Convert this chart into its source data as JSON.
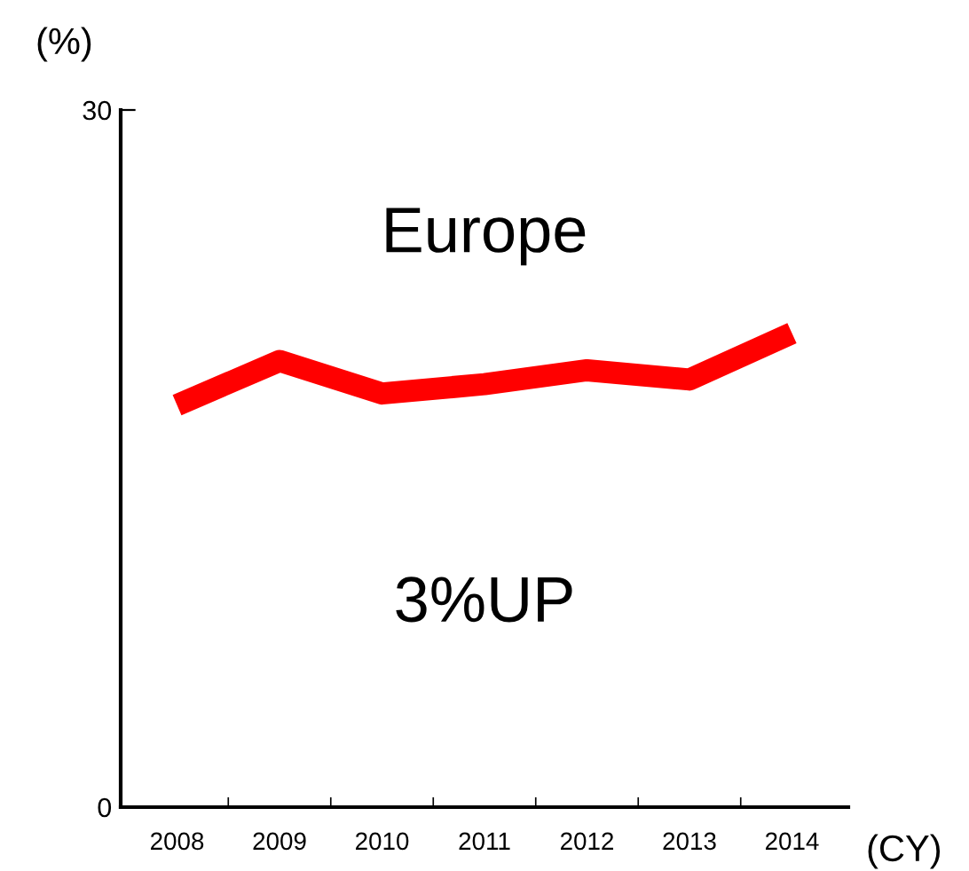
{
  "chart_data": {
    "type": "line",
    "title": "Europe",
    "ylabel": "(%)",
    "xlabel": "(CY)",
    "categories": [
      "2008",
      "2009",
      "2010",
      "2011",
      "2012",
      "2013",
      "2014"
    ],
    "series": [
      {
        "color": "#ff0000",
        "values": [
          17.3,
          19.2,
          17.8,
          18.2,
          18.8,
          18.4,
          20.4
        ]
      }
    ],
    "ylim": [
      0,
      30
    ],
    "yticks": [
      0,
      30
    ],
    "grid": false,
    "legend": false,
    "marker": "none",
    "line_style": "solid",
    "annotations": [
      "3%UP"
    ]
  }
}
